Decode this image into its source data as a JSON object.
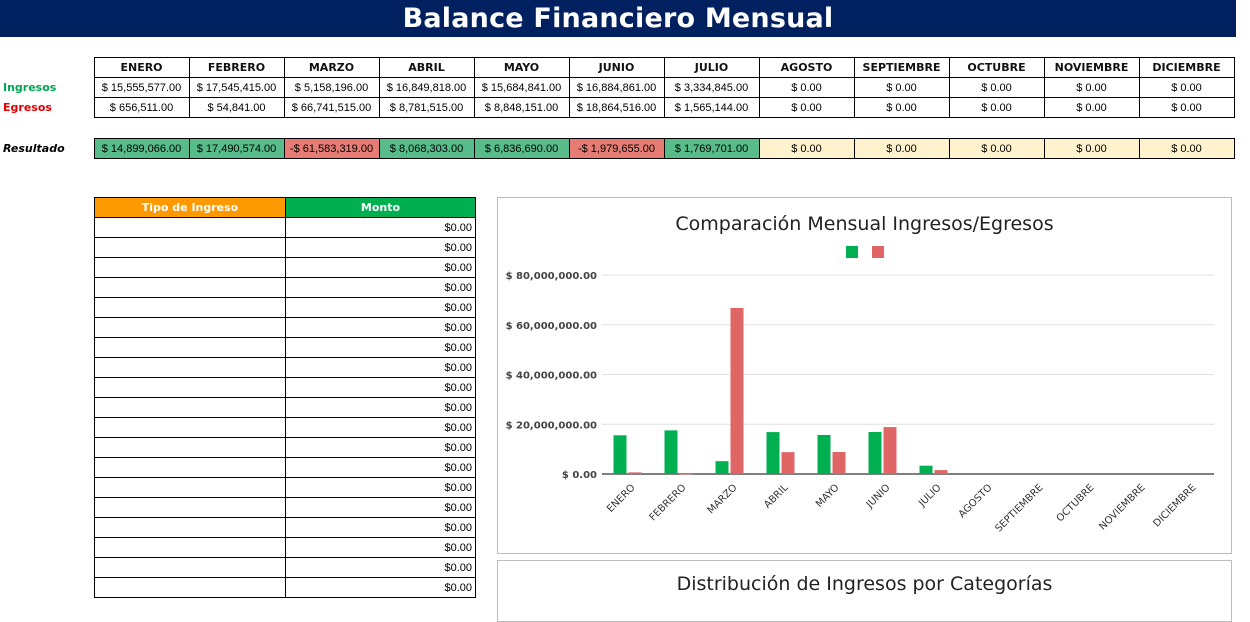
{
  "title": "Balance Financiero Mensual",
  "summary": {
    "months": [
      "ENERO",
      "FEBRERO",
      "MARZO",
      "ABRIL",
      "MAYO",
      "JUNIO",
      "JULIO",
      "AGOSTO",
      "SEPTIEMBRE",
      "OCTUBRE",
      "NOVIEMBRE",
      "DICIEMBRE"
    ],
    "ingresos_label": "Ingresos",
    "egresos_label": "Egresos",
    "resultado_label": "Resultado",
    "ingresos": [
      "$ 15,555,577.00",
      "$ 17,545,415.00",
      "$ 5,158,196.00",
      "$ 16,849,818.00",
      "$ 15,684,841.00",
      "$ 16,884,861.00",
      "$ 3,334,845.00",
      "$ 0.00",
      "$ 0.00",
      "$ 0.00",
      "$ 0.00",
      "$ 0.00"
    ],
    "egresos": [
      "$ 656,511.00",
      "$ 54,841.00",
      "$ 66,741,515.00",
      "$ 8,781,515.00",
      "$ 8,848,151.00",
      "$ 18,864,516.00",
      "$ 1,565,144.00",
      "$ 0.00",
      "$ 0.00",
      "$ 0.00",
      "$ 0.00",
      "$ 0.00"
    ],
    "resultado": [
      "$ 14,899,066.00",
      "$ 17,490,574.00",
      "-$ 61,583,319.00",
      "$ 8,068,303.00",
      "$ 6,836,690.00",
      "-$ 1,979,655.00",
      "$ 1,769,701.00",
      "$ 0.00",
      "$ 0.00",
      "$ 0.00",
      "$ 0.00",
      "$ 0.00"
    ],
    "resultado_status": [
      "pos",
      "pos",
      "neg",
      "pos",
      "pos",
      "neg",
      "pos",
      "zero",
      "zero",
      "zero",
      "zero",
      "zero"
    ]
  },
  "income_table": {
    "header_type": "Tipo de Ingreso",
    "header_amount": "Monto",
    "rows": [
      "$0.00",
      "$0.00",
      "$0.00",
      "$0.00",
      "$0.00",
      "$0.00",
      "$0.00",
      "$0.00",
      "$0.00",
      "$0.00",
      "$0.00",
      "$0.00",
      "$0.00",
      "$0.00",
      "$0.00",
      "$0.00",
      "$0.00",
      "$0.00",
      "$0.00"
    ]
  },
  "chart_data": {
    "type": "bar",
    "title": "Comparación Mensual Ingresos/Egresos",
    "categories": [
      "ENERO",
      "FEBRERO",
      "MARZO",
      "ABRIL",
      "MAYO",
      "JUNIO",
      "JULIO",
      "AGOSTO",
      "SEPTIEMBRE",
      "OCTUBRE",
      "NOVIEMBRE",
      "DICIEMBRE"
    ],
    "series": [
      {
        "values": [
          15555577,
          17545415,
          5158196,
          16849818,
          15684841,
          16884861,
          3334845,
          0,
          0,
          0,
          0,
          0
        ],
        "color": "#00b050"
      },
      {
        "values": [
          656511,
          54841,
          66741515,
          8781515,
          8848151,
          18864516,
          1565144,
          0,
          0,
          0,
          0,
          0
        ],
        "color": "#e06666"
      }
    ],
    "yticks": [
      "$ 0.00",
      "$ 20,000,000.00",
      "$ 40,000,000.00",
      "$ 60,000,000.00",
      "$ 80,000,000.00"
    ],
    "ylim": [
      0,
      80000000
    ],
    "grid": true,
    "legend": "top"
  },
  "second_chart": {
    "title": "Distribución de Ingresos por Categorías"
  },
  "colors": {
    "header_bg": "#002060",
    "positive": "#57bb8a",
    "negative": "#e67c73",
    "zero": "#fff2cc",
    "type_header": "#ff9900",
    "amount_header": "#00b050"
  }
}
